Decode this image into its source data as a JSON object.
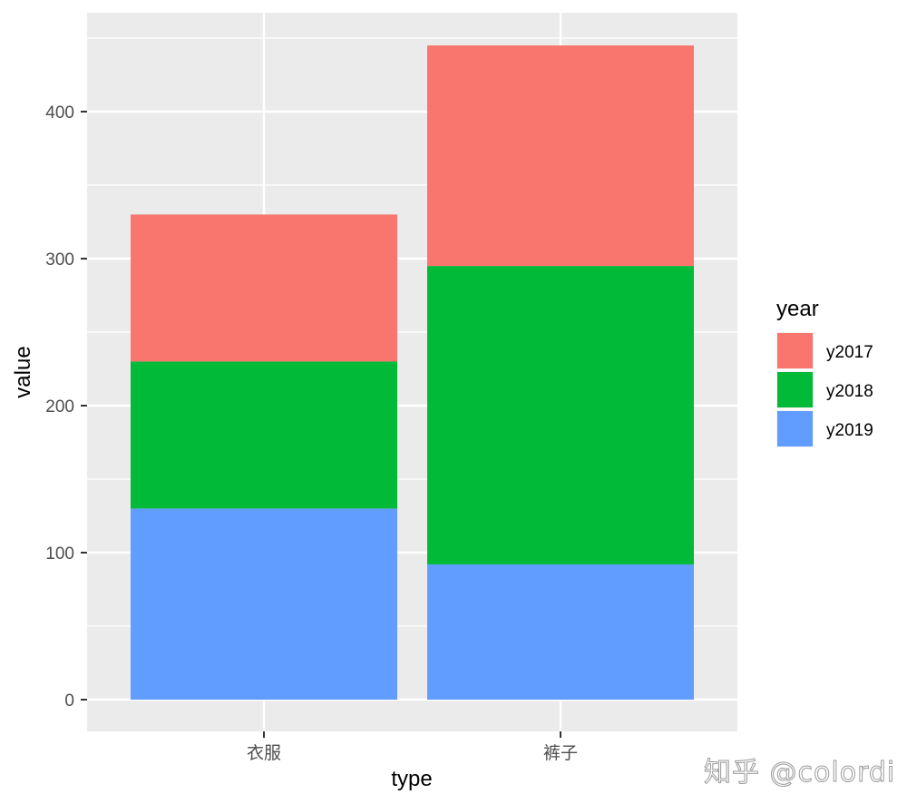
{
  "chart_data": {
    "type": "bar",
    "stacked": true,
    "title": "",
    "xlabel": "type",
    "ylabel": "value",
    "categories": [
      "衣服",
      "裤子"
    ],
    "series": [
      {
        "name": "y2017",
        "color": "#F8766D",
        "values": [
          100,
          150
        ]
      },
      {
        "name": "y2018",
        "color": "#00BA38",
        "values": [
          100,
          203
        ]
      },
      {
        "name": "y2019",
        "color": "#619CFF",
        "values": [
          130,
          92
        ]
      }
    ],
    "stack_order_bottom_to_top": [
      "y2019",
      "y2018",
      "y2017"
    ],
    "totals": [
      330,
      445
    ],
    "ylim": [
      -22,
      467
    ],
    "yticks": [
      0,
      100,
      200,
      300,
      400
    ],
    "grid": true,
    "legend": {
      "title": "year",
      "position": "right",
      "entries": [
        "y2017",
        "y2018",
        "y2019"
      ]
    },
    "panel_background": "#EBEBEB"
  },
  "watermark": "知乎 @colordi"
}
